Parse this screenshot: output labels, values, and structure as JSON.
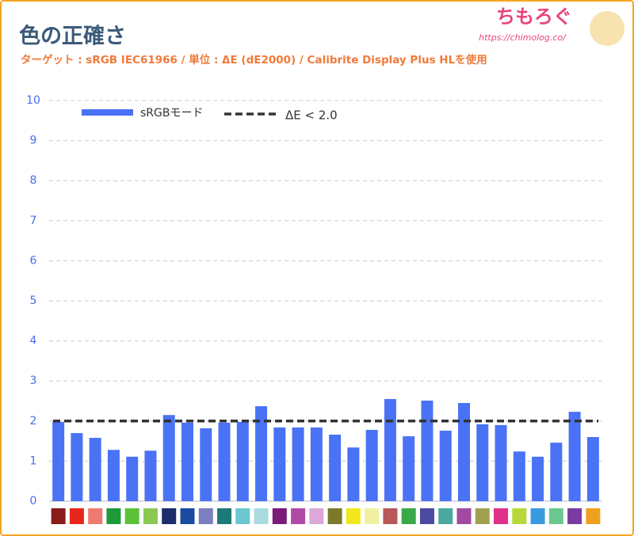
{
  "chart_data": {
    "type": "bar",
    "title": "色の正確さ",
    "subtitle": "ターゲット : sRGB IEC61966 / 単位 : ΔE (dE2000) / Calibrite Display Plus HLを使用",
    "watermark": "ちもろぐ",
    "watermark_url": "https://chimolog.co/",
    "categories": [
      null,
      null,
      null,
      null,
      null,
      null,
      null,
      null,
      null,
      null,
      null,
      null,
      null,
      null,
      null,
      null,
      null,
      null,
      null,
      null,
      null,
      null,
      null,
      null,
      null,
      null,
      null,
      null,
      null,
      null
    ],
    "category_colors": [
      "#8b1a1a",
      "#e8261c",
      "#ee7a70",
      "#1f9a3a",
      "#5cc13a",
      "#8cc850",
      "#1c2d6b",
      "#1c4aa0",
      "#7a7fc0",
      "#1c7a78",
      "#6cc8d0",
      "#a8dce0",
      "#7a1a7a",
      "#b04aa8",
      "#dca8d8",
      "#7a7a2a",
      "#f0e81a",
      "#f0f0a0",
      "#b85858",
      "#3aa848",
      "#4a4aa0",
      "#4aa8a0",
      "#a04aa0",
      "#a0a050",
      "#e0308a",
      "#b8d83a",
      "#3a9ae0",
      "#6ac890",
      "#7a3aa0",
      "#f0a020"
    ],
    "series": [
      {
        "name": "sRGBモード",
        "color": "#4a72f5",
        "values": [
          1.98,
          1.7,
          1.58,
          1.28,
          1.11,
          1.26,
          2.15,
          1.96,
          1.82,
          1.96,
          1.98,
          2.37,
          1.84,
          1.84,
          1.84,
          1.66,
          1.34,
          1.78,
          2.55,
          1.62,
          2.51,
          1.76,
          2.45,
          1.92,
          1.9,
          1.24,
          1.11,
          1.46,
          2.23,
          1.6
        ]
      }
    ],
    "reference_line": {
      "name": "ΔE < 2.0",
      "value": 2.0,
      "color": "#333333"
    },
    "ylim": [
      0,
      10
    ],
    "yticks": [
      0,
      1,
      2,
      3,
      4,
      5,
      6,
      7,
      8,
      9,
      10
    ],
    "grid": true,
    "legend": "top"
  }
}
